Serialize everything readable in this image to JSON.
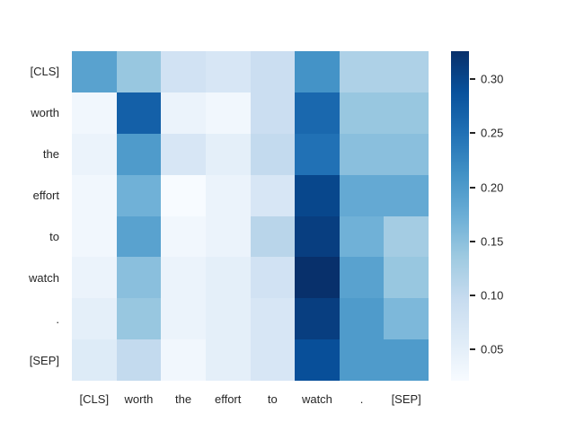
{
  "figure": {
    "background": "#ffffff",
    "text_color": "#262626",
    "colormap_name": "Blues"
  },
  "chart_data": {
    "type": "heatmap",
    "title": "",
    "xlabel": "",
    "ylabel": "",
    "x_tokens": [
      "[CLS]",
      "worth",
      "the",
      "effort",
      "to",
      "watch",
      ".",
      "[SEP]"
    ],
    "y_tokens": [
      "[CLS]",
      "worth",
      "the",
      "effort",
      "to",
      "watch",
      ".",
      "[SEP]"
    ],
    "matrix": [
      [
        0.19,
        0.14,
        0.08,
        0.07,
        0.09,
        0.21,
        0.12,
        0.12
      ],
      [
        0.03,
        0.27,
        0.04,
        0.03,
        0.09,
        0.26,
        0.14,
        0.14
      ],
      [
        0.04,
        0.2,
        0.07,
        0.05,
        0.1,
        0.25,
        0.15,
        0.15
      ],
      [
        0.03,
        0.17,
        0.02,
        0.04,
        0.07,
        0.3,
        0.18,
        0.18
      ],
      [
        0.03,
        0.19,
        0.03,
        0.04,
        0.11,
        0.31,
        0.17,
        0.13
      ],
      [
        0.04,
        0.15,
        0.04,
        0.05,
        0.08,
        0.33,
        0.19,
        0.14
      ],
      [
        0.05,
        0.14,
        0.04,
        0.05,
        0.07,
        0.31,
        0.2,
        0.16
      ],
      [
        0.06,
        0.1,
        0.03,
        0.05,
        0.07,
        0.29,
        0.2,
        0.2
      ]
    ],
    "vmin": 0.021,
    "vmax": 0.326,
    "grid": false,
    "legend_position": "right-colorbar",
    "colorbar": {
      "ticks": [
        0.3,
        0.25,
        0.2,
        0.15,
        0.1,
        0.05
      ],
      "tick_labels": [
        "0.30",
        "0.25",
        "0.20",
        "0.15",
        "0.10",
        "0.05"
      ]
    },
    "colormap_anchors": [
      "#f7fbff",
      "#deebf7",
      "#c6dbef",
      "#9ecae1",
      "#6baed6",
      "#4292c6",
      "#2171b5",
      "#08519c",
      "#08306b"
    ]
  }
}
